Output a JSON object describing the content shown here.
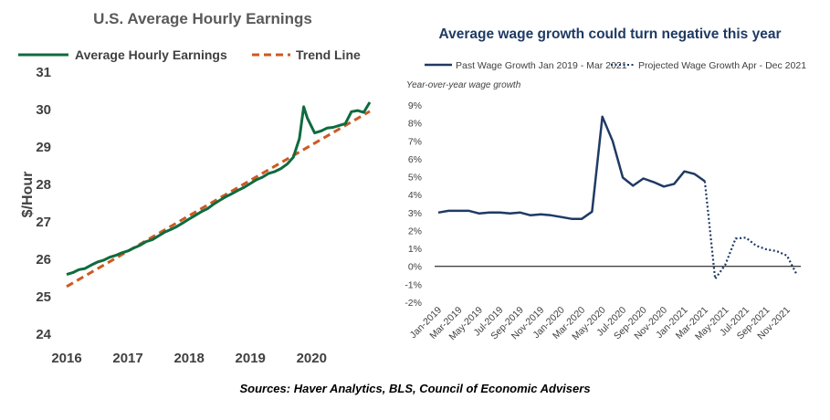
{
  "source_note": "Sources: Haver Analytics, BLS, Council of Economic Advisers",
  "chart_data": [
    {
      "type": "line",
      "title": "U.S. Average Hourly Earnings",
      "xlabel": "",
      "ylabel": "$/Hour",
      "xlim": [
        2016,
        2020.95
      ],
      "ylim": [
        24,
        31
      ],
      "x_ticks": [
        "2016",
        "2017",
        "2018",
        "2019",
        "2020"
      ],
      "y_ticks": [
        "24",
        "25",
        "26",
        "27",
        "28",
        "29",
        "30",
        "31"
      ],
      "grid": false,
      "legend_position": "top",
      "colors": {
        "earnings": "#0e6b3f",
        "trend": "#cc5a22"
      },
      "series": [
        {
          "name": "Average Hourly Earnings",
          "style": "solid",
          "x": [
            2016.0,
            2016.1,
            2016.2,
            2016.3,
            2016.4,
            2016.5,
            2016.6,
            2016.7,
            2016.8,
            2016.9,
            2017.0,
            2017.1,
            2017.2,
            2017.3,
            2017.4,
            2017.5,
            2017.6,
            2017.7,
            2017.8,
            2017.9,
            2018.0,
            2018.1,
            2018.2,
            2018.3,
            2018.4,
            2018.5,
            2018.6,
            2018.7,
            2018.8,
            2018.9,
            2019.0,
            2019.1,
            2019.2,
            2019.3,
            2019.4,
            2019.5,
            2019.6,
            2019.7,
            2019.8,
            2019.87,
            2019.93,
            2020.05,
            2020.15,
            2020.25,
            2020.35,
            2020.45,
            2020.55,
            2020.65,
            2020.75,
            2020.85,
            2020.95
          ],
          "values": [
            25.57,
            25.62,
            25.7,
            25.73,
            25.82,
            25.9,
            25.95,
            26.03,
            26.08,
            26.15,
            26.2,
            26.28,
            26.35,
            26.45,
            26.5,
            26.6,
            26.7,
            26.77,
            26.85,
            26.95,
            27.05,
            27.15,
            27.25,
            27.33,
            27.45,
            27.55,
            27.65,
            27.73,
            27.82,
            27.9,
            28.0,
            28.1,
            28.17,
            28.27,
            28.32,
            28.4,
            28.52,
            28.7,
            29.2,
            30.05,
            29.75,
            29.35,
            29.4,
            29.48,
            29.5,
            29.55,
            29.6,
            29.92,
            29.95,
            29.9,
            30.17
          ]
        },
        {
          "name": "Trend Line",
          "style": "dashed",
          "x": [
            2016.0,
            2020.95
          ],
          "values": [
            25.25,
            29.93
          ]
        }
      ]
    },
    {
      "type": "line",
      "title": "Average wage growth could turn negative this year",
      "subtitle": "Year-over-year wage growth",
      "xlabel": "",
      "ylabel": "",
      "ylim": [
        -2,
        9
      ],
      "y_ticks": [
        "9%",
        "8%",
        "7%",
        "6%",
        "5%",
        "4%",
        "3%",
        "2%",
        "1%",
        "0%",
        "-1%",
        "-2%"
      ],
      "x_ticks": [
        "Jan-2019",
        "Mar-2019",
        "May-2019",
        "Jul-2019",
        "Sep-2019",
        "Nov-2019",
        "Jan-2020",
        "Mar-2020",
        "May-2020",
        "Jul-2020",
        "Sep-2020",
        "Nov-2020",
        "Jan-2021",
        "Mar-2021",
        "May-2021",
        "Jul-2021",
        "Sep-2021",
        "Nov-2021"
      ],
      "grid": false,
      "legend_position": "top",
      "colors": {
        "line": "#1f3a64",
        "title": "#1f3a64"
      },
      "series": [
        {
          "name": "Past Wage Growth Jan 2019 - Mar 2021",
          "style": "solid",
          "x": [
            "Jan-2019",
            "Feb-2019",
            "Mar-2019",
            "Apr-2019",
            "May-2019",
            "Jun-2019",
            "Jul-2019",
            "Aug-2019",
            "Sep-2019",
            "Oct-2019",
            "Nov-2019",
            "Dec-2019",
            "Jan-2020",
            "Feb-2020",
            "Mar-2020",
            "Apr-2020",
            "May-2020",
            "Jun-2020",
            "Jul-2020",
            "Aug-2020",
            "Sep-2020",
            "Oct-2020",
            "Nov-2020",
            "Dec-2020",
            "Jan-2021",
            "Feb-2021",
            "Mar-2021"
          ],
          "values": [
            3.0,
            3.1,
            3.1,
            3.1,
            2.95,
            3.0,
            3.0,
            2.95,
            3.0,
            2.85,
            2.9,
            2.85,
            2.75,
            2.65,
            2.65,
            3.05,
            8.35,
            7.0,
            4.95,
            4.5,
            4.9,
            4.7,
            4.45,
            4.6,
            5.3,
            5.15,
            4.75
          ]
        },
        {
          "name": "Projected Wage Growth Apr - Dec 2021",
          "style": "dotted",
          "x": [
            "Mar-2021",
            "Apr-2021",
            "May-2021",
            "Jun-2021",
            "Jul-2021",
            "Aug-2021",
            "Sep-2021",
            "Oct-2021",
            "Nov-2021",
            "Dec-2021"
          ],
          "values": [
            4.75,
            -0.7,
            0.1,
            1.55,
            1.6,
            1.15,
            0.95,
            0.85,
            0.6,
            -0.5
          ]
        }
      ]
    }
  ]
}
